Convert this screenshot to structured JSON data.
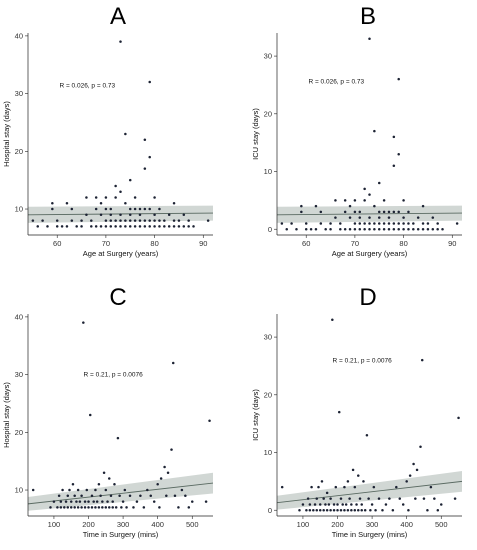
{
  "chart_data": [
    {
      "type": "scatter",
      "panel": "A",
      "xlabel": "Age at Surgery (years)",
      "ylabel": "Hospital stay (days)",
      "xlim": [
        54,
        92
      ],
      "ylim": [
        5.5,
        40.5
      ],
      "xticks": [
        60,
        70,
        80,
        90
      ],
      "yticks": [
        10,
        20,
        30,
        40
      ],
      "annotation": {
        "R": "R = 0.026, p = 0.73"
      },
      "fit": {
        "x": [
          54,
          92
        ],
        "y": [
          9.0,
          9.3
        ],
        "ci_low": [
          7.6,
          8.0
        ],
        "ci_high": [
          10.4,
          10.6
        ]
      },
      "points": [
        [
          55,
          8
        ],
        [
          56,
          7
        ],
        [
          57,
          8
        ],
        [
          58,
          7
        ],
        [
          59,
          10
        ],
        [
          59,
          11
        ],
        [
          60,
          7
        ],
        [
          60,
          8
        ],
        [
          61,
          7
        ],
        [
          62,
          7
        ],
        [
          62,
          11
        ],
        [
          63,
          10
        ],
        [
          63,
          8
        ],
        [
          64,
          7
        ],
        [
          65,
          7
        ],
        [
          65,
          8
        ],
        [
          66,
          9
        ],
        [
          66,
          12
        ],
        [
          67,
          7
        ],
        [
          67,
          8
        ],
        [
          68,
          7
        ],
        [
          68,
          10
        ],
        [
          68,
          12
        ],
        [
          69,
          7
        ],
        [
          69,
          9
        ],
        [
          69,
          11
        ],
        [
          70,
          7
        ],
        [
          70,
          8
        ],
        [
          70,
          10
        ],
        [
          70,
          12
        ],
        [
          71,
          7
        ],
        [
          71,
          8
        ],
        [
          71,
          9
        ],
        [
          71,
          10
        ],
        [
          72,
          7
        ],
        [
          72,
          8
        ],
        [
          72,
          14
        ],
        [
          72,
          12
        ],
        [
          73,
          7
        ],
        [
          73,
          8
        ],
        [
          73,
          9
        ],
        [
          73,
          13
        ],
        [
          73,
          39
        ],
        [
          74,
          7
        ],
        [
          74,
          8
        ],
        [
          74,
          11
        ],
        [
          74,
          23
        ],
        [
          75,
          7
        ],
        [
          75,
          8
        ],
        [
          75,
          9
        ],
        [
          75,
          10
        ],
        [
          75,
          15
        ],
        [
          76,
          7
        ],
        [
          76,
          8
        ],
        [
          76,
          10
        ],
        [
          76,
          12
        ],
        [
          77,
          7
        ],
        [
          77,
          8
        ],
        [
          77,
          9
        ],
        [
          77,
          10
        ],
        [
          78,
          7
        ],
        [
          78,
          8
        ],
        [
          78,
          10
        ],
        [
          78,
          17
        ],
        [
          78,
          22
        ],
        [
          79,
          7
        ],
        [
          79,
          8
        ],
        [
          79,
          10
        ],
        [
          79,
          19
        ],
        [
          79,
          32
        ],
        [
          80,
          7
        ],
        [
          80,
          8
        ],
        [
          80,
          9
        ],
        [
          80,
          12
        ],
        [
          81,
          7
        ],
        [
          81,
          8
        ],
        [
          81,
          10
        ],
        [
          82,
          7
        ],
        [
          82,
          8
        ],
        [
          83,
          7
        ],
        [
          83,
          9
        ],
        [
          84,
          7
        ],
        [
          84,
          8
        ],
        [
          84,
          11
        ],
        [
          85,
          7
        ],
        [
          85,
          8
        ],
        [
          86,
          7
        ],
        [
          86,
          9
        ],
        [
          87,
          7
        ],
        [
          87,
          8
        ],
        [
          88,
          7
        ],
        [
          91,
          8
        ]
      ]
    },
    {
      "type": "scatter",
      "panel": "B",
      "xlabel": "Age at Surgery (years)",
      "ylabel": "ICU stay (days)",
      "xlim": [
        54,
        92
      ],
      "ylim": [
        -1,
        34
      ],
      "xticks": [
        60,
        70,
        80,
        90
      ],
      "yticks": [
        0,
        10,
        20,
        30
      ],
      "annotation": {
        "R": "R = 0.026, p = 0.73"
      },
      "fit": {
        "x": [
          54,
          92
        ],
        "y": [
          2.5,
          2.8
        ],
        "ci_low": [
          1.1,
          1.5
        ],
        "ci_high": [
          3.9,
          4.1
        ]
      },
      "points": [
        [
          55,
          1
        ],
        [
          56,
          0
        ],
        [
          57,
          1
        ],
        [
          58,
          0
        ],
        [
          59,
          3
        ],
        [
          59,
          4
        ],
        [
          60,
          0
        ],
        [
          60,
          1
        ],
        [
          61,
          0
        ],
        [
          62,
          0
        ],
        [
          62,
          4
        ],
        [
          63,
          3
        ],
        [
          63,
          1
        ],
        [
          64,
          0
        ],
        [
          65,
          0
        ],
        [
          65,
          1
        ],
        [
          66,
          2
        ],
        [
          66,
          5
        ],
        [
          67,
          0
        ],
        [
          67,
          1
        ],
        [
          68,
          0
        ],
        [
          68,
          3
        ],
        [
          68,
          5
        ],
        [
          69,
          0
        ],
        [
          69,
          2
        ],
        [
          69,
          4
        ],
        [
          70,
          0
        ],
        [
          70,
          1
        ],
        [
          70,
          3
        ],
        [
          70,
          5
        ],
        [
          71,
          0
        ],
        [
          71,
          1
        ],
        [
          71,
          2
        ],
        [
          71,
          3
        ],
        [
          72,
          0
        ],
        [
          72,
          1
        ],
        [
          72,
          7
        ],
        [
          72,
          5
        ],
        [
          73,
          0
        ],
        [
          73,
          1
        ],
        [
          73,
          2
        ],
        [
          73,
          6
        ],
        [
          73,
          33
        ],
        [
          74,
          0
        ],
        [
          74,
          1
        ],
        [
          74,
          4
        ],
        [
          74,
          17
        ],
        [
          75,
          0
        ],
        [
          75,
          1
        ],
        [
          75,
          2
        ],
        [
          75,
          3
        ],
        [
          75,
          8
        ],
        [
          76,
          0
        ],
        [
          76,
          1
        ],
        [
          76,
          3
        ],
        [
          76,
          5
        ],
        [
          77,
          0
        ],
        [
          77,
          1
        ],
        [
          77,
          2
        ],
        [
          77,
          3
        ],
        [
          78,
          0
        ],
        [
          78,
          1
        ],
        [
          78,
          3
        ],
        [
          78,
          11
        ],
        [
          78,
          16
        ],
        [
          79,
          0
        ],
        [
          79,
          1
        ],
        [
          79,
          3
        ],
        [
          79,
          13
        ],
        [
          79,
          26
        ],
        [
          80,
          0
        ],
        [
          80,
          1
        ],
        [
          80,
          2
        ],
        [
          80,
          5
        ],
        [
          81,
          0
        ],
        [
          81,
          1
        ],
        [
          81,
          3
        ],
        [
          82,
          0
        ],
        [
          82,
          1
        ],
        [
          83,
          0
        ],
        [
          83,
          2
        ],
        [
          84,
          0
        ],
        [
          84,
          1
        ],
        [
          84,
          4
        ],
        [
          85,
          0
        ],
        [
          85,
          1
        ],
        [
          86,
          0
        ],
        [
          86,
          2
        ],
        [
          87,
          0
        ],
        [
          87,
          1
        ],
        [
          88,
          0
        ],
        [
          91,
          1
        ]
      ]
    },
    {
      "type": "scatter",
      "panel": "C",
      "xlabel": "Time in Surgery (mins)",
      "ylabel": "Hospital stay (days)",
      "xlim": [
        25,
        560
      ],
      "ylim": [
        5.5,
        40.5
      ],
      "xticks": [
        100,
        200,
        300,
        400,
        500
      ],
      "yticks": [
        10,
        20,
        30,
        40
      ],
      "annotation": {
        "R": "R = 0.21, p = 0.0076"
      },
      "fit": {
        "x": [
          25,
          560
        ],
        "y": [
          7.6,
          11.2
        ],
        "ci_low": [
          6.4,
          9.4
        ],
        "ci_high": [
          8.8,
          13.0
        ]
      },
      "points": [
        [
          40,
          10
        ],
        [
          90,
          7
        ],
        [
          100,
          8
        ],
        [
          110,
          7
        ],
        [
          115,
          9
        ],
        [
          120,
          7
        ],
        [
          120,
          8
        ],
        [
          125,
          10
        ],
        [
          130,
          7
        ],
        [
          135,
          8
        ],
        [
          140,
          7
        ],
        [
          140,
          9
        ],
        [
          145,
          10
        ],
        [
          150,
          7
        ],
        [
          150,
          8
        ],
        [
          155,
          11
        ],
        [
          160,
          7
        ],
        [
          160,
          9
        ],
        [
          165,
          8
        ],
        [
          170,
          7
        ],
        [
          170,
          10
        ],
        [
          175,
          8
        ],
        [
          180,
          7
        ],
        [
          180,
          9
        ],
        [
          185,
          39
        ],
        [
          190,
          7
        ],
        [
          190,
          8
        ],
        [
          195,
          10
        ],
        [
          200,
          7
        ],
        [
          200,
          8
        ],
        [
          205,
          23
        ],
        [
          210,
          7
        ],
        [
          210,
          9
        ],
        [
          215,
          8
        ],
        [
          220,
          7
        ],
        [
          220,
          10
        ],
        [
          225,
          8
        ],
        [
          230,
          7
        ],
        [
          230,
          11
        ],
        [
          235,
          9
        ],
        [
          240,
          7
        ],
        [
          240,
          8
        ],
        [
          245,
          13
        ],
        [
          250,
          7
        ],
        [
          250,
          10
        ],
        [
          255,
          8
        ],
        [
          260,
          7
        ],
        [
          260,
          12
        ],
        [
          265,
          9
        ],
        [
          270,
          7
        ],
        [
          270,
          8
        ],
        [
          275,
          11
        ],
        [
          280,
          7
        ],
        [
          285,
          19
        ],
        [
          290,
          9
        ],
        [
          295,
          7
        ],
        [
          300,
          8
        ],
        [
          305,
          10
        ],
        [
          310,
          7
        ],
        [
          320,
          9
        ],
        [
          330,
          7
        ],
        [
          340,
          8
        ],
        [
          350,
          9
        ],
        [
          360,
          7
        ],
        [
          370,
          10
        ],
        [
          380,
          9
        ],
        [
          390,
          8
        ],
        [
          400,
          11
        ],
        [
          405,
          7
        ],
        [
          410,
          12
        ],
        [
          420,
          14
        ],
        [
          425,
          9
        ],
        [
          430,
          13
        ],
        [
          440,
          17
        ],
        [
          445,
          32
        ],
        [
          450,
          9
        ],
        [
          460,
          7
        ],
        [
          470,
          10
        ],
        [
          480,
          9
        ],
        [
          490,
          7
        ],
        [
          500,
          8
        ],
        [
          540,
          8
        ],
        [
          550,
          22
        ]
      ]
    },
    {
      "type": "scatter",
      "panel": "D",
      "xlabel": "Time in Surgery (mins)",
      "ylabel": "ICU stay (days)",
      "xlim": [
        25,
        560
      ],
      "ylim": [
        -1,
        34
      ],
      "xticks": [
        100,
        200,
        300,
        400,
        500
      ],
      "yticks": [
        0,
        10,
        20,
        30
      ],
      "annotation": {
        "R": "R = 0.21, p = 0.0076"
      },
      "fit": {
        "x": [
          25,
          560
        ],
        "y": [
          1.3,
          5.0
        ],
        "ci_low": [
          0.1,
          3.2
        ],
        "ci_high": [
          2.5,
          6.8
        ]
      },
      "points": [
        [
          40,
          4
        ],
        [
          90,
          0
        ],
        [
          100,
          1
        ],
        [
          110,
          0
        ],
        [
          115,
          2
        ],
        [
          120,
          0
        ],
        [
          120,
          1
        ],
        [
          125,
          4
        ],
        [
          130,
          0
        ],
        [
          135,
          1
        ],
        [
          140,
          0
        ],
        [
          140,
          2
        ],
        [
          145,
          4
        ],
        [
          150,
          0
        ],
        [
          150,
          1
        ],
        [
          155,
          5
        ],
        [
          160,
          0
        ],
        [
          160,
          2
        ],
        [
          165,
          1
        ],
        [
          170,
          0
        ],
        [
          170,
          3
        ],
        [
          175,
          1
        ],
        [
          180,
          0
        ],
        [
          180,
          2
        ],
        [
          185,
          33
        ],
        [
          190,
          0
        ],
        [
          190,
          1
        ],
        [
          195,
          4
        ],
        [
          200,
          0
        ],
        [
          200,
          1
        ],
        [
          205,
          17
        ],
        [
          210,
          0
        ],
        [
          210,
          2
        ],
        [
          215,
          1
        ],
        [
          220,
          0
        ],
        [
          220,
          4
        ],
        [
          225,
          1
        ],
        [
          230,
          0
        ],
        [
          230,
          5
        ],
        [
          235,
          2
        ],
        [
          240,
          0
        ],
        [
          240,
          1
        ],
        [
          245,
          7
        ],
        [
          250,
          0
        ],
        [
          250,
          4
        ],
        [
          255,
          1
        ],
        [
          260,
          0
        ],
        [
          260,
          6
        ],
        [
          265,
          2
        ],
        [
          270,
          0
        ],
        [
          270,
          1
        ],
        [
          275,
          5
        ],
        [
          280,
          0
        ],
        [
          285,
          13
        ],
        [
          290,
          2
        ],
        [
          295,
          0
        ],
        [
          300,
          1
        ],
        [
          305,
          4
        ],
        [
          310,
          0
        ],
        [
          320,
          2
        ],
        [
          330,
          0
        ],
        [
          340,
          1
        ],
        [
          350,
          2
        ],
        [
          360,
          0
        ],
        [
          370,
          4
        ],
        [
          380,
          2
        ],
        [
          390,
          1
        ],
        [
          400,
          5
        ],
        [
          405,
          0
        ],
        [
          410,
          6
        ],
        [
          420,
          8
        ],
        [
          425,
          2
        ],
        [
          430,
          7
        ],
        [
          440,
          11
        ],
        [
          445,
          26
        ],
        [
          450,
          2
        ],
        [
          460,
          0
        ],
        [
          470,
          4
        ],
        [
          480,
          2
        ],
        [
          490,
          0
        ],
        [
          500,
          1
        ],
        [
          540,
          2
        ],
        [
          550,
          16
        ]
      ]
    }
  ]
}
